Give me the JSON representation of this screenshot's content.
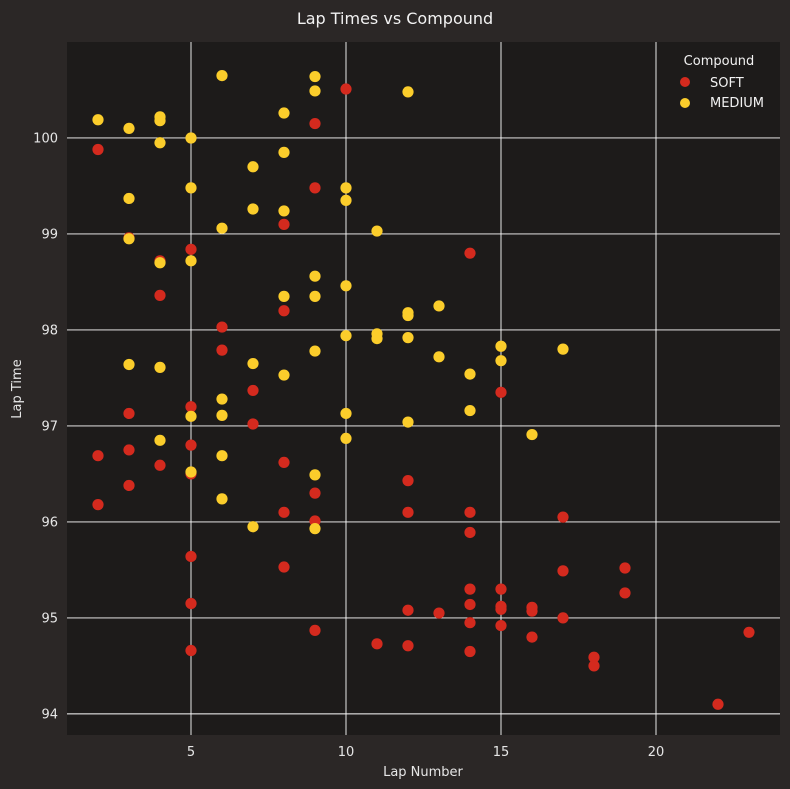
{
  "chart_data": {
    "type": "scatter",
    "title": "Lap Times vs Compound",
    "xlabel": "Lap Number",
    "ylabel": "Lap Time",
    "xlim": [
      1.0,
      24.0
    ],
    "ylim": [
      93.78,
      101.0
    ],
    "xticks": [
      5,
      10,
      15,
      20
    ],
    "yticks": [
      94,
      95,
      96,
      97,
      98,
      99,
      100
    ],
    "grid": true,
    "legend": {
      "title": "Compound",
      "position": "top-right"
    },
    "colors": {
      "background": "#2b2726",
      "plot_background": "#1d1b1a",
      "grid": "#ffffff",
      "text": "#e6e6e6"
    },
    "series": [
      {
        "name": "SOFT",
        "color": "#d42a1e",
        "points": [
          [
            2,
            99.88
          ],
          [
            2,
            96.69
          ],
          [
            2,
            96.18
          ],
          [
            3,
            98.96
          ],
          [
            3,
            97.13
          ],
          [
            3,
            96.75
          ],
          [
            3,
            96.38
          ],
          [
            4,
            98.72
          ],
          [
            4,
            98.36
          ],
          [
            4,
            96.59
          ],
          [
            5,
            98.84
          ],
          [
            5,
            97.2
          ],
          [
            5,
            96.8
          ],
          [
            5,
            96.5
          ],
          [
            5,
            95.64
          ],
          [
            5,
            95.15
          ],
          [
            5,
            94.66
          ],
          [
            6,
            98.03
          ],
          [
            6,
            97.79
          ],
          [
            7,
            97.37
          ],
          [
            7,
            97.02
          ],
          [
            8,
            99.1
          ],
          [
            8,
            98.2
          ],
          [
            8,
            96.62
          ],
          [
            8,
            96.1
          ],
          [
            8,
            95.53
          ],
          [
            9,
            100.15
          ],
          [
            9,
            99.48
          ],
          [
            9,
            96.3
          ],
          [
            9,
            96.01
          ],
          [
            9,
            94.87
          ],
          [
            10,
            100.51
          ],
          [
            11,
            94.73
          ],
          [
            12,
            96.43
          ],
          [
            12,
            96.1
          ],
          [
            12,
            95.08
          ],
          [
            12,
            94.71
          ],
          [
            13,
            95.05
          ],
          [
            14,
            98.8
          ],
          [
            14,
            96.1
          ],
          [
            14,
            95.89
          ],
          [
            14,
            95.3
          ],
          [
            14,
            95.14
          ],
          [
            14,
            94.95
          ],
          [
            14,
            94.65
          ],
          [
            15,
            97.35
          ],
          [
            15,
            95.3
          ],
          [
            15,
            95.12
          ],
          [
            15,
            95.09
          ],
          [
            15,
            94.92
          ],
          [
            16,
            95.11
          ],
          [
            16,
            95.07
          ],
          [
            16,
            94.8
          ],
          [
            17,
            96.05
          ],
          [
            17,
            95.49
          ],
          [
            17,
            95.0
          ],
          [
            18,
            94.59
          ],
          [
            18,
            94.5
          ],
          [
            19,
            95.52
          ],
          [
            19,
            95.26
          ],
          [
            22,
            94.1
          ],
          [
            23,
            94.85
          ]
        ]
      },
      {
        "name": "MEDIUM",
        "color": "#fbcd2b",
        "points": [
          [
            2,
            100.19
          ],
          [
            3,
            100.1
          ],
          [
            3,
            99.37
          ],
          [
            3,
            98.95
          ],
          [
            3,
            97.64
          ],
          [
            4,
            100.22
          ],
          [
            4,
            100.18
          ],
          [
            4,
            99.95
          ],
          [
            4,
            98.7
          ],
          [
            4,
            97.61
          ],
          [
            4,
            96.85
          ],
          [
            5,
            100.0
          ],
          [
            5,
            99.48
          ],
          [
            5,
            98.72
          ],
          [
            5,
            97.1
          ],
          [
            5,
            96.52
          ],
          [
            6,
            100.65
          ],
          [
            6,
            99.06
          ],
          [
            6,
            97.28
          ],
          [
            6,
            97.11
          ],
          [
            6,
            96.69
          ],
          [
            6,
            96.24
          ],
          [
            7,
            99.7
          ],
          [
            7,
            99.26
          ],
          [
            7,
            97.65
          ],
          [
            7,
            95.95
          ],
          [
            8,
            100.26
          ],
          [
            8,
            99.85
          ],
          [
            8,
            99.24
          ],
          [
            8,
            98.35
          ],
          [
            8,
            97.53
          ],
          [
            9,
            100.64
          ],
          [
            9,
            100.49
          ],
          [
            9,
            98.56
          ],
          [
            9,
            98.35
          ],
          [
            9,
            97.78
          ],
          [
            9,
            96.49
          ],
          [
            9,
            95.93
          ],
          [
            10,
            99.48
          ],
          [
            10,
            99.35
          ],
          [
            10,
            98.46
          ],
          [
            10,
            97.94
          ],
          [
            10,
            97.13
          ],
          [
            10,
            96.87
          ],
          [
            11,
            99.03
          ],
          [
            11,
            97.96
          ],
          [
            11,
            97.91
          ],
          [
            12,
            100.48
          ],
          [
            12,
            98.18
          ],
          [
            12,
            98.15
          ],
          [
            12,
            97.92
          ],
          [
            12,
            97.04
          ],
          [
            13,
            98.25
          ],
          [
            13,
            97.72
          ],
          [
            14,
            97.54
          ],
          [
            14,
            97.16
          ],
          [
            15,
            97.83
          ],
          [
            15,
            97.68
          ],
          [
            16,
            96.91
          ],
          [
            17,
            97.8
          ]
        ]
      }
    ]
  }
}
